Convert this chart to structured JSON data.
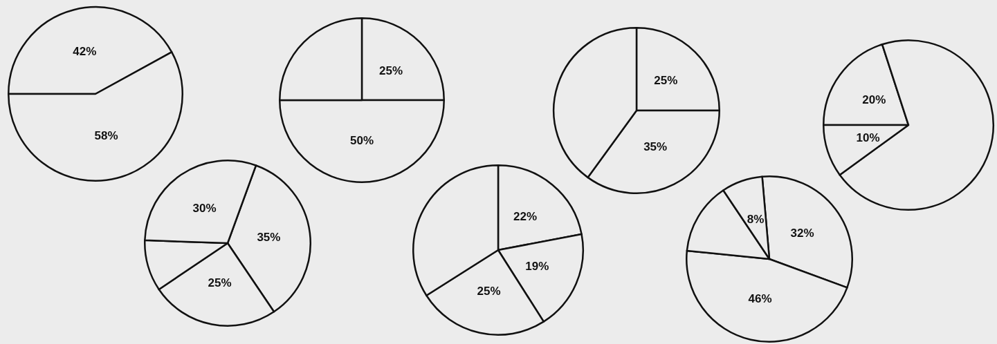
{
  "chart_data": [
    {
      "type": "pie",
      "categories": [
        null,
        null
      ],
      "values": [
        42,
        58
      ],
      "colors": [
        "#ececec",
        "#ececec"
      ],
      "value_labels": [
        "42%",
        "58%"
      ]
    },
    {
      "type": "pie",
      "categories": [
        null,
        null,
        null
      ],
      "values": [
        25,
        50,
        25
      ],
      "colors": [
        "#ececec",
        "#ececec",
        "#ececec"
      ],
      "value_labels": [
        "25%",
        "50%",
        null
      ]
    },
    {
      "type": "pie",
      "categories": [
        null,
        null,
        null
      ],
      "values": [
        25,
        35,
        40
      ],
      "colors": [
        "#ececec",
        "#ececec",
        "#ececec"
      ],
      "value_labels": [
        "25%",
        "35%",
        null
      ]
    },
    {
      "type": "pie",
      "categories": [
        null,
        null,
        null
      ],
      "values": [
        20,
        70,
        10
      ],
      "colors": [
        "#ececec",
        "#ececec",
        "#ececec"
      ],
      "value_labels": [
        "20%",
        null,
        "10%"
      ]
    },
    {
      "type": "pie",
      "categories": [
        null,
        null,
        null,
        null
      ],
      "values": [
        35,
        25,
        10,
        30
      ],
      "colors": [
        "#ececec",
        "#ececec",
        "#ececec",
        "#ececec"
      ],
      "value_labels": [
        "35%",
        "25%",
        null,
        "30%"
      ]
    },
    {
      "type": "pie",
      "categories": [
        null,
        null,
        null,
        null
      ],
      "values": [
        22,
        19,
        25,
        34
      ],
      "colors": [
        "#ececec",
        "#ececec",
        "#ececec",
        "#ececec"
      ],
      "value_labels": [
        "22%",
        "19%",
        "25%",
        null
      ]
    },
    {
      "type": "pie",
      "categories": [
        null,
        null,
        null,
        null
      ],
      "values": [
        32,
        46,
        14,
        8
      ],
      "colors": [
        "#ececec",
        "#ececec",
        "#ececec",
        "#ececec"
      ],
      "value_labels": [
        "32%",
        "46%",
        null,
        "8%"
      ]
    }
  ]
}
